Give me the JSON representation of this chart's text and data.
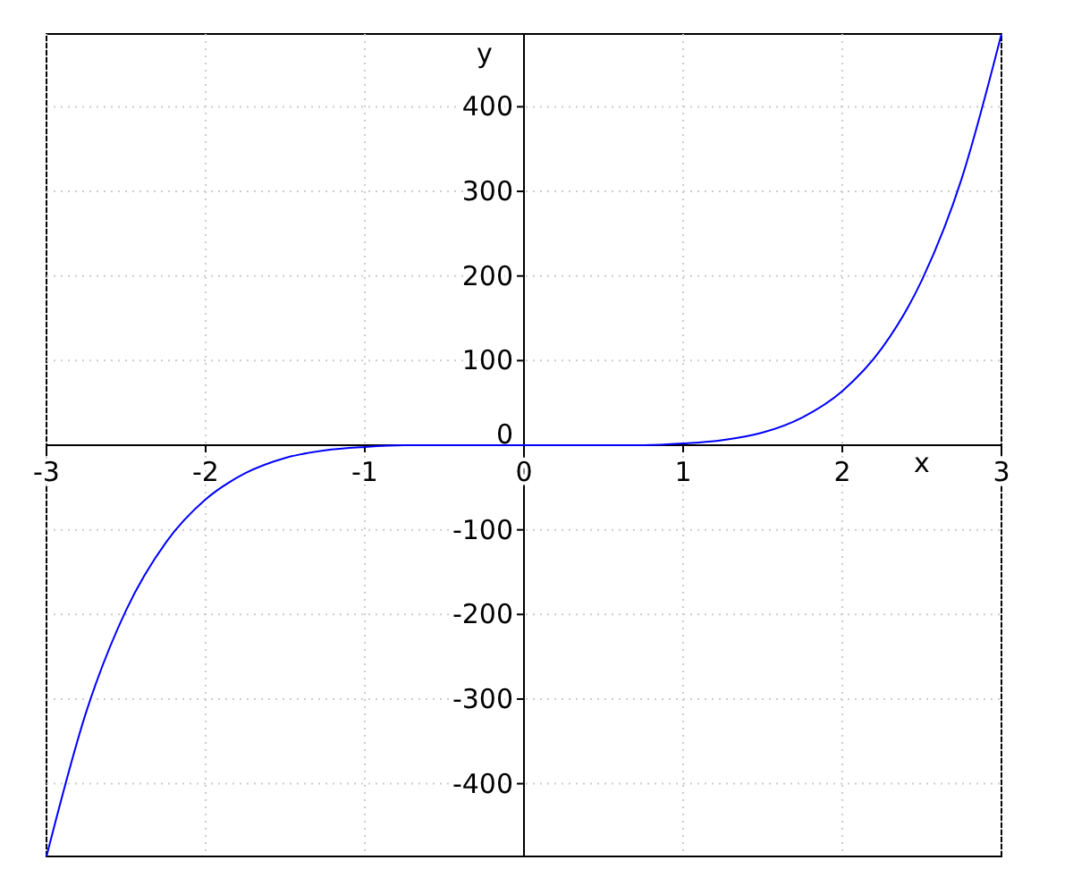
{
  "chart_data": {
    "type": "line",
    "xlabel": "x",
    "ylabel": "y",
    "x": [
      -3,
      -2.75,
      -2.5,
      -2.25,
      -2,
      -1.75,
      -1.5,
      -1.25,
      -1,
      -0.75,
      -0.5,
      0,
      0.5,
      0.75,
      1,
      1.25,
      1.5,
      1.75,
      2,
      2.25,
      2.5,
      2.75,
      3
    ],
    "series": [
      {
        "color": "#0000ff",
        "values": [
          -486,
          -315,
          -195,
          -115,
          -64,
          -33,
          -15,
          -6,
          -2,
          0,
          0,
          0,
          0,
          0,
          2,
          6,
          15,
          33,
          64,
          115,
          195,
          315,
          486
        ]
      }
    ],
    "xlim": [
      -3,
      3
    ],
    "ylim": [
      -486,
      486
    ],
    "xticks": [
      -3,
      -2,
      -1,
      0,
      1,
      2,
      3
    ],
    "yticks": [
      -400,
      -300,
      -200,
      -100,
      0,
      100,
      200,
      300,
      400
    ],
    "grid": true,
    "marker": "none",
    "line_style": "solid"
  }
}
